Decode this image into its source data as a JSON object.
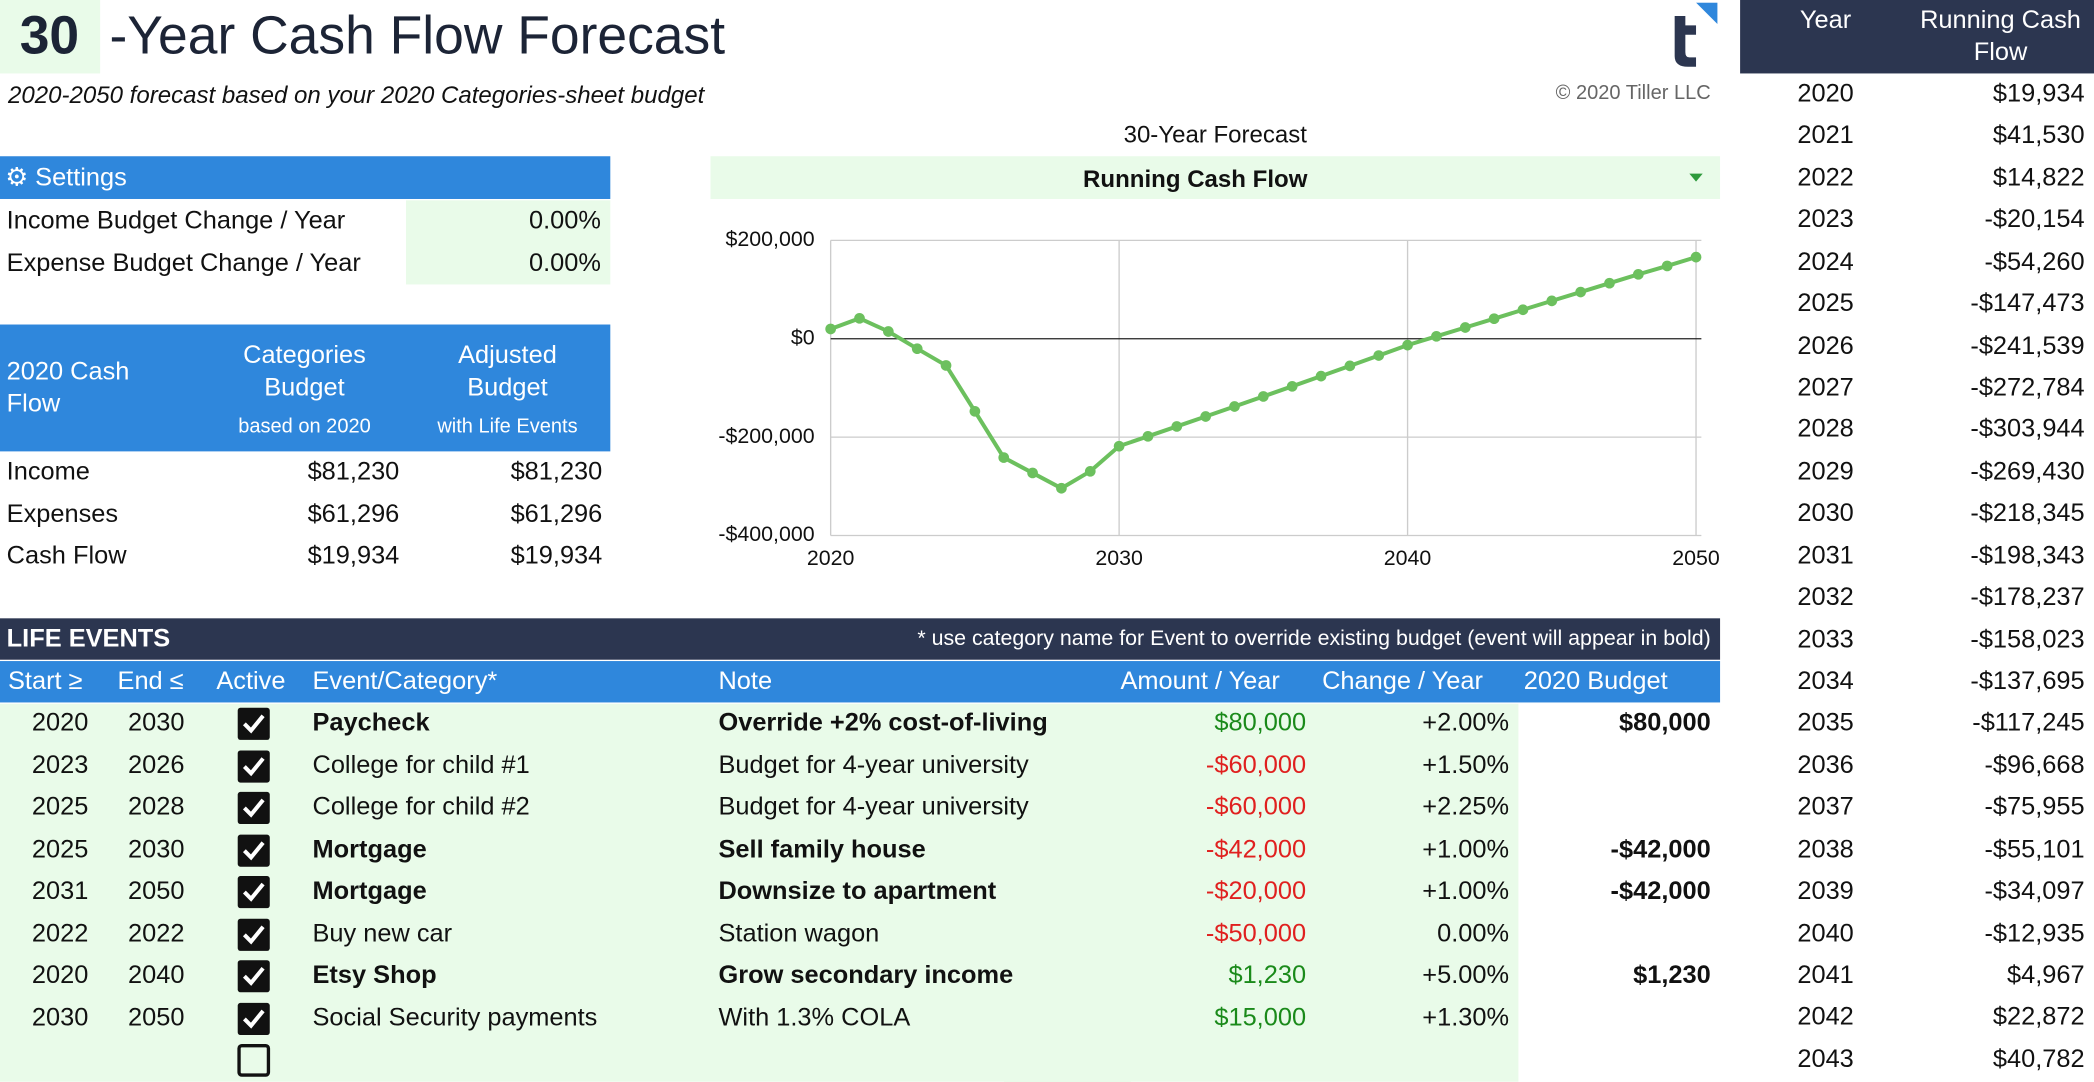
{
  "header": {
    "title_number": "30",
    "title": "-Year Cash Flow Forecast",
    "subtitle": "2020-2050 forecast based on your 2020 Categories-sheet budget",
    "copyright": "© 2020 Tiller LLC"
  },
  "settings": {
    "title": "⚙ Settings",
    "rows": [
      [
        "Income Budget Change / Year",
        "0.00%"
      ],
      [
        "Expense Budget Change / Year",
        "0.00%"
      ]
    ]
  },
  "budget": {
    "headers": [
      {
        "title": "2020 Cash Flow"
      },
      {
        "title": "Categories Budget",
        "sub": "based on 2020"
      },
      {
        "title": "Adjusted Budget",
        "sub": "with Life Events"
      }
    ],
    "rows": [
      [
        "Income",
        "$81,230",
        "$81,230"
      ],
      [
        "Expenses",
        "$61,296",
        "$61,296"
      ],
      [
        "Cash Flow",
        "$19,934",
        "$19,934"
      ]
    ]
  },
  "chart_data": {
    "type": "line",
    "title": "30-Year Forecast",
    "x": [
      2020,
      2021,
      2022,
      2023,
      2024,
      2025,
      2026,
      2027,
      2028,
      2029,
      2030,
      2031,
      2032,
      2033,
      2034,
      2035,
      2036,
      2037,
      2038,
      2039,
      2040,
      2041,
      2042,
      2043,
      2044,
      2045,
      2046,
      2047,
      2048,
      2049,
      2050
    ],
    "series": [
      {
        "name": "Running Cash Flow",
        "color": "#6cc05e",
        "values": [
          19934,
          41530,
          14822,
          -20154,
          -54260,
          -147473,
          -241539,
          -272784,
          -303944,
          -269430,
          -218345,
          -198343,
          -178237,
          -158023,
          -137695,
          -117245,
          -96668,
          -75955,
          -55101,
          -34097,
          -12935,
          4967,
          22872,
          40782,
          59000,
          77000,
          95000,
          113000,
          131000,
          148000,
          166000
        ]
      }
    ],
    "xlim": [
      2020,
      2050
    ],
    "xticks": [
      2020,
      2030,
      2040,
      2050
    ],
    "ylim": [
      -400000,
      200000
    ],
    "yticks": [
      {
        "value": -400000,
        "label": "-$400,000"
      },
      {
        "value": -200000,
        "label": "-$200,000"
      },
      {
        "value": 0,
        "label": "$0"
      },
      {
        "value": 200000,
        "label": "$200,000"
      }
    ],
    "grid": true
  },
  "life_events": {
    "title": "LIFE EVENTS",
    "note": "* use category name for Event to override existing budget (event will appear in bold)",
    "headers": [
      "Start ≥",
      "End ≤",
      "Active",
      "Event/Category*",
      "Note",
      "Amount / Year",
      "Change / Year",
      "2020 Budget"
    ],
    "rows": [
      {
        "start": "2020",
        "end": "2030",
        "active": true,
        "event": "Paycheck",
        "note": "Override +2% cost-of-living",
        "amount": "$80,000",
        "change": "+2.00%",
        "budget": "$80,000",
        "bold": true
      },
      {
        "start": "2023",
        "end": "2026",
        "active": true,
        "event": "College for child #1",
        "note": "Budget for 4-year university",
        "amount": "-$60,000",
        "change": "+1.50%",
        "bold": false
      },
      {
        "start": "2025",
        "end": "2028",
        "active": true,
        "event": "College for child #2",
        "note": "Budget for 4-year university",
        "amount": "-$60,000",
        "change": "+2.25%",
        "bold": false
      },
      {
        "start": "2025",
        "end": "2030",
        "active": true,
        "event": "Mortgage",
        "note": "Sell family house",
        "amount": "-$42,000",
        "change": "+1.00%",
        "budget": "-$42,000",
        "bold": true
      },
      {
        "start": "2031",
        "end": "2050",
        "active": true,
        "event": "Mortgage",
        "note": "Downsize to apartment",
        "amount": "-$20,000",
        "change": "+1.00%",
        "budget": "-$42,000",
        "bold": true
      },
      {
        "start": "2022",
        "end": "2022",
        "active": true,
        "event": "Buy new car",
        "note": "Station wagon",
        "amount": "-$50,000",
        "change": "0.00%",
        "bold": false
      },
      {
        "start": "2020",
        "end": "2040",
        "active": true,
        "event": "Etsy Shop",
        "note": "Grow secondary income",
        "amount": "$1,230",
        "change": "+5.00%",
        "budget": "$1,230",
        "bold": true
      },
      {
        "start": "2030",
        "end": "2050",
        "active": true,
        "event": "Social Security payments",
        "note": "With 1.3% COLA",
        "amount": "$15,000",
        "change": "+1.30%",
        "bold": false
      },
      {
        "active": false
      }
    ]
  },
  "forecast_table": {
    "headers": [
      "Year",
      "Running Cash Flow"
    ],
    "rows": [
      [
        "2020",
        "$19,934"
      ],
      [
        "2021",
        "$41,530"
      ],
      [
        "2022",
        "$14,822"
      ],
      [
        "2023",
        "-$20,154"
      ],
      [
        "2024",
        "-$54,260"
      ],
      [
        "2025",
        "-$147,473"
      ],
      [
        "2026",
        "-$241,539"
      ],
      [
        "2027",
        "-$272,784"
      ],
      [
        "2028",
        "-$303,944"
      ],
      [
        "2029",
        "-$269,430"
      ],
      [
        "2030",
        "-$218,345"
      ],
      [
        "2031",
        "-$198,343"
      ],
      [
        "2032",
        "-$178,237"
      ],
      [
        "2033",
        "-$158,023"
      ],
      [
        "2034",
        "-$137,695"
      ],
      [
        "2035",
        "-$117,245"
      ],
      [
        "2036",
        "-$96,668"
      ],
      [
        "2037",
        "-$75,955"
      ],
      [
        "2038",
        "-$55,101"
      ],
      [
        "2039",
        "-$34,097"
      ],
      [
        "2040",
        "-$12,935"
      ],
      [
        "2041",
        "$4,967"
      ],
      [
        "2042",
        "$22,872"
      ],
      [
        "2043",
        "$40,782"
      ]
    ]
  }
}
